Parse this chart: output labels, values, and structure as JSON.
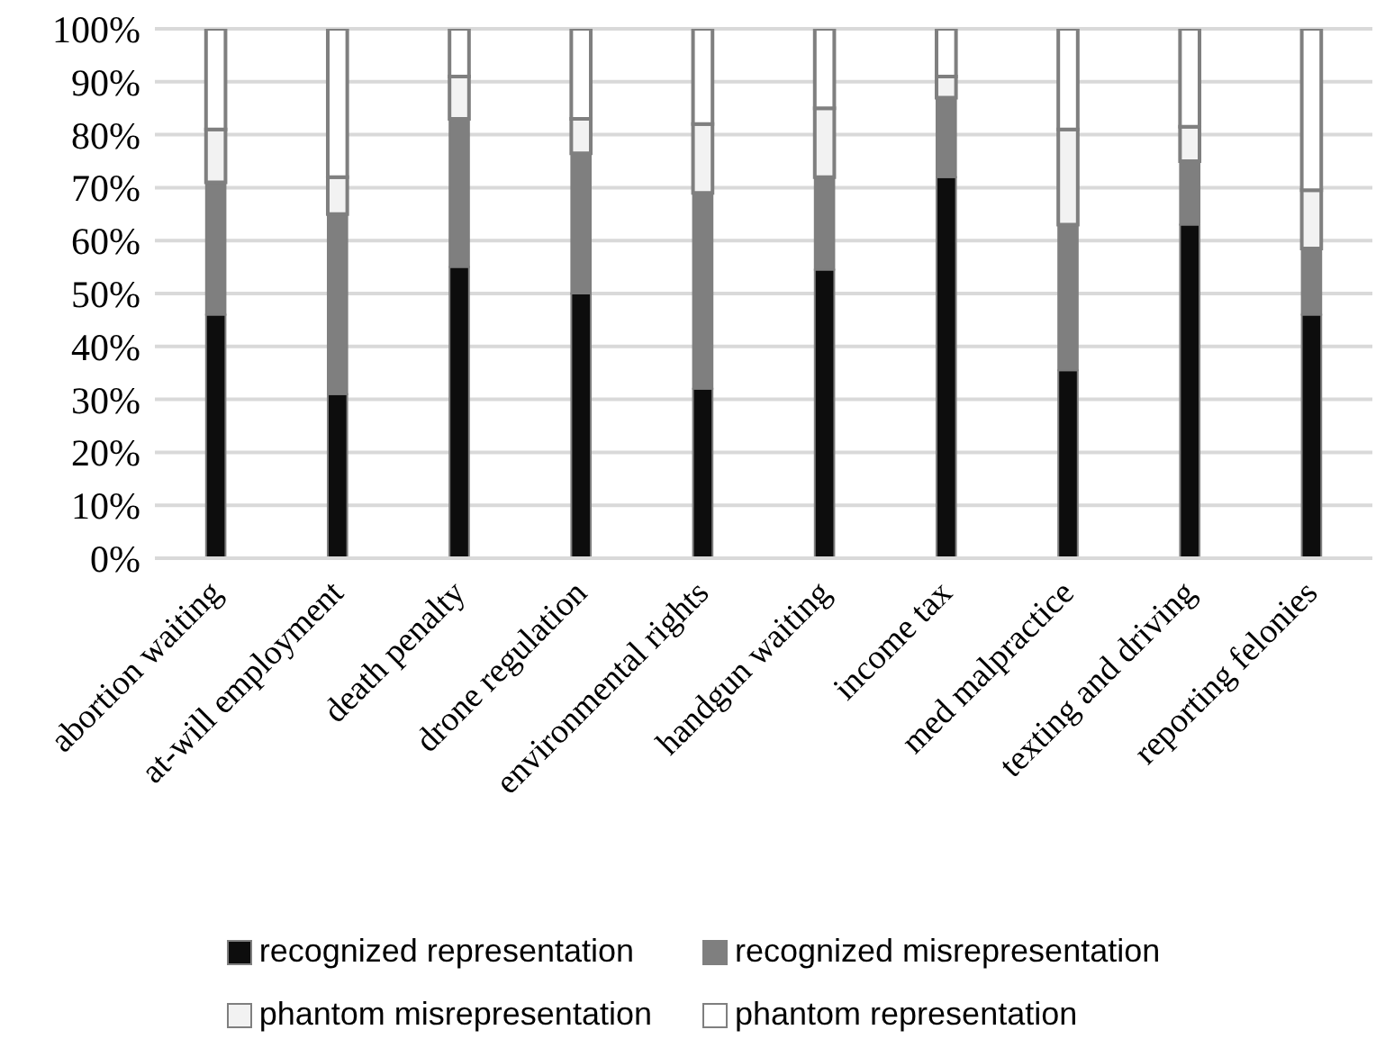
{
  "chart_data": {
    "type": "bar",
    "stacked": true,
    "categories": [
      "abortion waiting",
      "at-will employment",
      "death penalty",
      "drone regulation",
      "environmental rights",
      "handgun waiting",
      "income tax",
      "med malpractice",
      "texting and driving",
      "reporting felonies"
    ],
    "series": [
      {
        "name": "recognized representation",
        "color": "#0d0d0d",
        "values": [
          46,
          31,
          55,
          50,
          32,
          54.5,
          72,
          35.5,
          63,
          46
        ]
      },
      {
        "name": "recognized misrepresentation",
        "color": "#7f7f7f",
        "values": [
          25,
          34,
          28,
          26.5,
          37,
          17.5,
          15,
          27.5,
          12,
          12.5
        ]
      },
      {
        "name": "phantom misrepresentation",
        "color": "#f2f2f2",
        "values": [
          10,
          7,
          8,
          6.5,
          13,
          13,
          4,
          18,
          6.5,
          11
        ]
      },
      {
        "name": "phantom representation",
        "color": "#ffffff",
        "values": [
          19,
          28,
          9,
          17,
          18,
          15,
          9,
          19,
          18.5,
          30.5
        ]
      }
    ],
    "ylim": [
      0,
      100
    ],
    "yticks": [
      {
        "value": 0,
        "label": "0%"
      },
      {
        "value": 10,
        "label": "10%"
      },
      {
        "value": 20,
        "label": "20%"
      },
      {
        "value": 30,
        "label": "30%"
      },
      {
        "value": 40,
        "label": "40%"
      },
      {
        "value": 50,
        "label": "50%"
      },
      {
        "value": 60,
        "label": "60%"
      },
      {
        "value": 70,
        "label": "70%"
      },
      {
        "value": 80,
        "label": "80%"
      },
      {
        "value": 90,
        "label": "90%"
      },
      {
        "value": 100,
        "label": "100%"
      }
    ],
    "grid": "y",
    "legend": "bottom"
  }
}
